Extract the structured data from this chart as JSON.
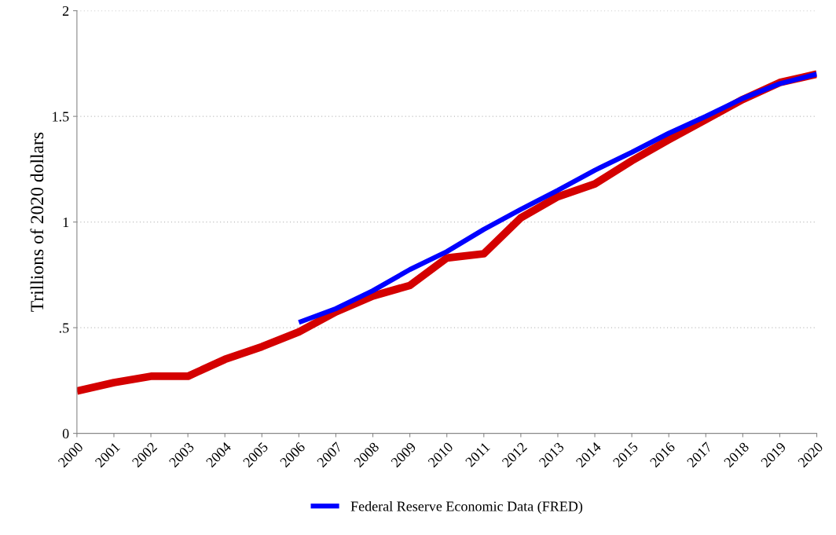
{
  "chart_data": {
    "type": "line",
    "ylabel": "Trillions of 2020 dollars",
    "x": [
      2000,
      2001,
      2002,
      2003,
      2004,
      2005,
      2006,
      2007,
      2008,
      2009,
      2010,
      2011,
      2012,
      2013,
      2014,
      2015,
      2016,
      2017,
      2018,
      2019,
      2020
    ],
    "series": [
      {
        "color": "#d40000",
        "values": [
          0.2,
          0.24,
          0.27,
          0.27,
          0.35,
          0.41,
          0.48,
          0.575,
          0.65,
          0.7,
          0.83,
          0.85,
          1.02,
          1.12,
          1.18,
          1.29,
          1.39,
          1.485,
          1.58,
          1.66,
          1.7
        ]
      },
      {
        "name": "Federal Reserve Economic Data (FRED)",
        "color": "#0000ff",
        "x": [
          2006,
          2007,
          2008,
          2009,
          2010,
          2011,
          2012,
          2013,
          2014,
          2015,
          2016,
          2017,
          2018,
          2019,
          2020
        ],
        "values": [
          0.525,
          0.59,
          0.675,
          0.775,
          0.86,
          0.965,
          1.06,
          1.15,
          1.245,
          1.33,
          1.42,
          1.5,
          1.585,
          1.655,
          1.7
        ]
      }
    ],
    "xlim": [
      2000,
      2020
    ],
    "xticks": [
      2000,
      2001,
      2002,
      2003,
      2004,
      2005,
      2006,
      2007,
      2008,
      2009,
      2010,
      2011,
      2012,
      2013,
      2014,
      2015,
      2016,
      2017,
      2018,
      2019,
      2020
    ],
    "ylim": [
      0,
      2
    ],
    "yticks": [
      0,
      {
        "value": 0.5,
        "label": ".5"
      },
      1,
      1.5,
      2
    ],
    "grid": "y",
    "legend": "bottom",
    "line_style": "solid",
    "marker": "none"
  }
}
